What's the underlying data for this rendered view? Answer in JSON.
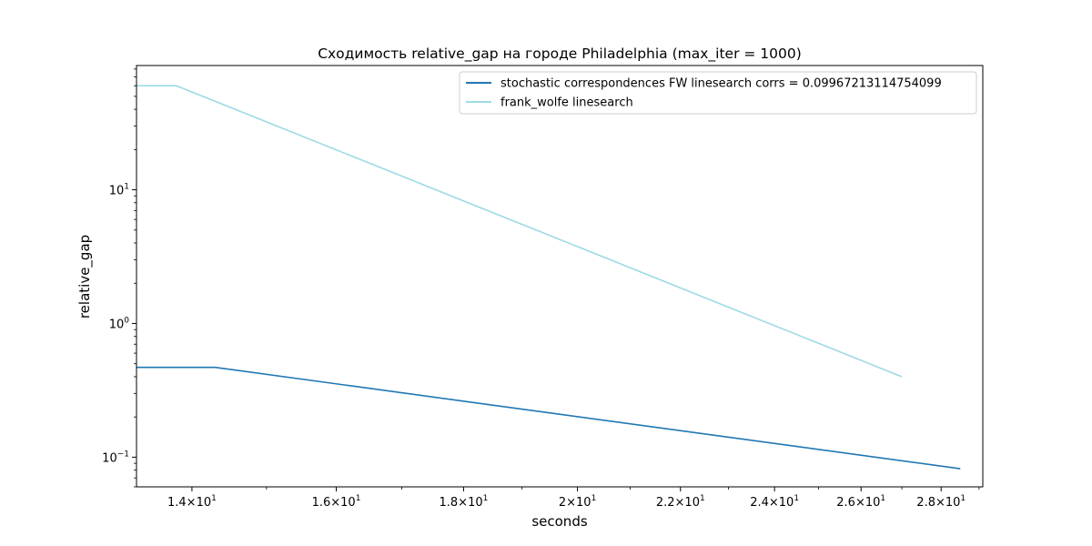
{
  "chart_data": {
    "type": "line",
    "title": "Сходимость relative_gap на городе Philadelphia  (max_iter = 1000)",
    "xlabel": "seconds",
    "ylabel": "relative_gap",
    "xscale": "log",
    "yscale": "log",
    "xlim": [
      13.3,
      29.1
    ],
    "ylim": [
      0.06,
      85
    ],
    "x_ticks": [
      {
        "value": 14,
        "mantissa": "1.4",
        "base": "10",
        "exp": "1"
      },
      {
        "value": 16,
        "mantissa": "1.6",
        "base": "10",
        "exp": "1"
      },
      {
        "value": 18,
        "mantissa": "1.8",
        "base": "10",
        "exp": "1"
      },
      {
        "value": 20,
        "mantissa": "2",
        "base": "10",
        "exp": "1"
      },
      {
        "value": 22,
        "mantissa": "2.2",
        "base": "10",
        "exp": "1"
      },
      {
        "value": 24,
        "mantissa": "2.4",
        "base": "10",
        "exp": "1"
      },
      {
        "value": 26,
        "mantissa": "2.6",
        "base": "10",
        "exp": "1"
      },
      {
        "value": 28,
        "mantissa": "2.8",
        "base": "10",
        "exp": "1"
      }
    ],
    "y_ticks": [
      {
        "value": 0.1,
        "base": "10",
        "exp": "−1"
      },
      {
        "value": 1,
        "base": "10",
        "exp": "0"
      },
      {
        "value": 10,
        "base": "10",
        "exp": "1"
      }
    ],
    "grid": false,
    "legend_position": "top-right",
    "series": [
      {
        "name": "stochastic correspondences FW linesearch corrs = 0.09967213114754099",
        "color": "#1f77b4",
        "x": [
          13.3,
          14.3,
          28.5
        ],
        "y": [
          0.47,
          0.47,
          0.082
        ]
      },
      {
        "name": "frank_wolfe linesearch",
        "color": "#9edae5",
        "x": [
          13.3,
          13.8,
          27.0
        ],
        "y": [
          60,
          60,
          0.4
        ]
      }
    ]
  }
}
